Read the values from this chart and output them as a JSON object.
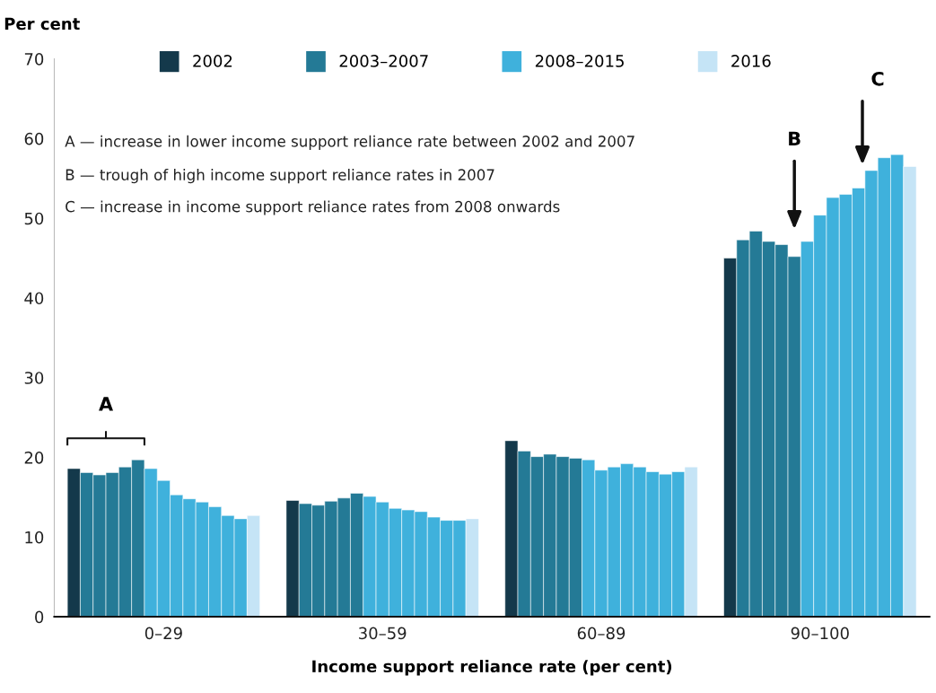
{
  "chart_data": {
    "type": "bar",
    "ylabel": "Per cent",
    "xlabel": "Income support reliance rate (per cent)",
    "categories": [
      "0–29",
      "30–59",
      "60–89",
      "90–100"
    ],
    "series": [
      {
        "name": "2002",
        "color": "#14394b",
        "values": [
          18.6,
          14.6,
          22.1,
          45.0
        ]
      },
      {
        "name": "2003–2007",
        "color": "#247a96",
        "values": [
          18.1,
          14.2,
          20.8,
          47.3
        ]
      },
      {
        "color": "#247a96",
        "values": [
          17.8,
          14.0,
          20.1,
          48.4
        ]
      },
      {
        "color": "#247a96",
        "values": [
          18.1,
          14.5,
          20.4,
          47.1
        ]
      },
      {
        "color": "#247a96",
        "values": [
          18.8,
          14.9,
          20.1,
          46.7
        ]
      },
      {
        "color": "#247a96",
        "values": [
          19.7,
          15.5,
          19.9,
          45.2
        ]
      },
      {
        "name": "2008–2015",
        "color": "#3fb1dc",
        "values": [
          18.6,
          15.1,
          19.7,
          47.1
        ]
      },
      {
        "color": "#3fb1dc",
        "values": [
          17.1,
          14.4,
          18.4,
          50.4
        ]
      },
      {
        "color": "#3fb1dc",
        "values": [
          15.3,
          13.6,
          18.8,
          52.6
        ]
      },
      {
        "color": "#3fb1dc",
        "values": [
          14.8,
          13.4,
          19.2,
          53.0
        ]
      },
      {
        "color": "#3fb1dc",
        "values": [
          14.4,
          13.2,
          18.8,
          53.8
        ]
      },
      {
        "color": "#3fb1dc",
        "values": [
          13.8,
          12.5,
          18.2,
          56.0
        ]
      },
      {
        "color": "#3fb1dc",
        "values": [
          12.7,
          12.1,
          17.9,
          57.6
        ]
      },
      {
        "color": "#3fb1dc",
        "values": [
          12.3,
          12.1,
          18.2,
          58.0
        ]
      },
      {
        "name": "2016",
        "color": "#c5e4f6",
        "values": [
          12.7,
          12.3,
          18.8,
          56.5
        ]
      }
    ],
    "ylim": [
      0,
      70
    ],
    "yticks": [
      0,
      10,
      20,
      30,
      40,
      50,
      60,
      70
    ],
    "grid": false,
    "legend": "top",
    "annotations": [
      "A",
      "B",
      "C",
      "A — increase in lower income support reliance rate between 2002 and 2007",
      "B — trough of high income support reliance rates in 2007",
      "C — increase in income support reliance rates from 2008 onwards"
    ]
  }
}
